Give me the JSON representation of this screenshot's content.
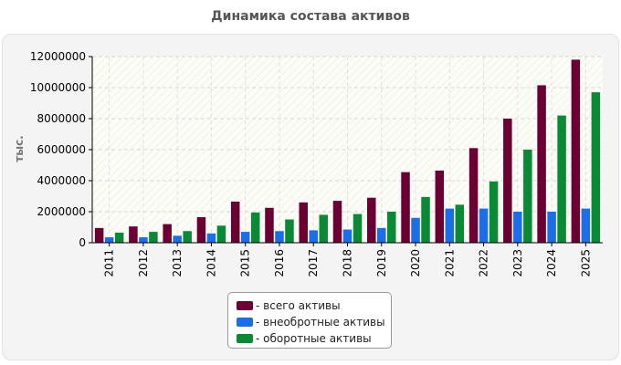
{
  "chart_data": {
    "type": "bar",
    "title": "Динамика состава активов",
    "ylabel": "тыс.",
    "xlabel": "",
    "ylim": [
      0,
      12000000
    ],
    "yticks": [
      0,
      2000000,
      4000000,
      6000000,
      8000000,
      10000000,
      12000000
    ],
    "grid": true,
    "legend_position": "bottom",
    "categories": [
      "2011",
      "2012",
      "2013",
      "2014",
      "2015",
      "2016",
      "2017",
      "2018",
      "2019",
      "2020",
      "2021",
      "2022",
      "2023",
      "2024",
      "2025"
    ],
    "series": [
      {
        "name": "- всего активы",
        "color": "#6b0033",
        "values": [
          950000,
          1050000,
          1200000,
          1650000,
          2650000,
          2250000,
          2600000,
          2700000,
          2900000,
          4550000,
          4650000,
          6100000,
          8000000,
          10150000,
          11800000
        ]
      },
      {
        "name": "- внеобротные активы",
        "color": "#1a6ee8",
        "values": [
          350000,
          350000,
          450000,
          600000,
          700000,
          750000,
          800000,
          850000,
          950000,
          1600000,
          2200000,
          2200000,
          2000000,
          2000000,
          2200000
        ]
      },
      {
        "name": "- оборотные активы",
        "color": "#0b8a35",
        "values": [
          650000,
          700000,
          750000,
          1100000,
          1950000,
          1500000,
          1800000,
          1850000,
          2000000,
          2950000,
          2450000,
          3950000,
          6000000,
          8200000,
          9700000
        ]
      }
    ]
  }
}
